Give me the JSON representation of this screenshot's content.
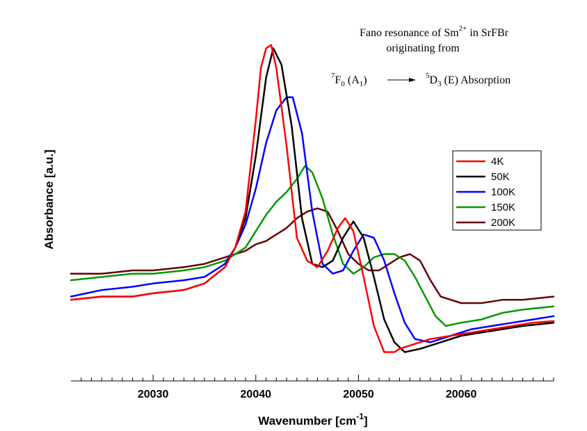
{
  "chart_data": {
    "type": "line",
    "title": "",
    "xlabel": "Wavenumber [cm",
    "xlabel_sup": "-1",
    "xlabel_end": "]",
    "ylabel": "Absorbance [a.u.]",
    "xlim": [
      20022,
      20069
    ],
    "ylim": [
      0,
      1
    ],
    "xticks": [
      20030,
      20040,
      20050,
      20060
    ],
    "xtick_labels": [
      "20030",
      "20040",
      "20050",
      "20060"
    ],
    "annotation": {
      "line1_a": "Fano resonance of Sm",
      "line1_sup": "2+",
      "line1_b": " in SrFBr",
      "line2": "originating from",
      "line3_pre_sup": "7",
      "line3_a": "F",
      "line3_sub1": "0",
      "line3_b": " (A",
      "line3_sub2": "1",
      "line3_c": ")",
      "line3_post_sup": "5",
      "line3_d": "D",
      "line3_sub3": "3",
      "line3_e": " (E)  Absorption"
    },
    "series": [
      {
        "name": "4K",
        "color": "#ff0000",
        "x": [
          20022,
          20025,
          20028,
          20030,
          20033,
          20035,
          20037,
          20038,
          20039,
          20040,
          20040.5,
          20041,
          20041.5,
          20042,
          20043,
          20044,
          20045,
          20046,
          20047,
          20048,
          20048.7,
          20049.5,
          20050.5,
          20051.5,
          20052.5,
          20053.5,
          20054,
          20055,
          20057,
          20059,
          20061,
          20063,
          20065,
          20067,
          20069
        ],
        "y": [
          0.21,
          0.22,
          0.22,
          0.23,
          0.24,
          0.26,
          0.31,
          0.37,
          0.48,
          0.76,
          0.92,
          0.98,
          0.99,
          0.92,
          0.68,
          0.4,
          0.33,
          0.31,
          0.36,
          0.43,
          0.46,
          0.42,
          0.28,
          0.13,
          0.05,
          0.05,
          0.06,
          0.07,
          0.09,
          0.1,
          0.11,
          0.12,
          0.13,
          0.14,
          0.145
        ]
      },
      {
        "name": "50K",
        "color": "#000000",
        "x": [
          20022,
          20025,
          20028,
          20030,
          20033,
          20035,
          20037,
          20038,
          20039,
          20040,
          20041,
          20041.7,
          20042.5,
          20043.5,
          20044.5,
          20045.5,
          20046.5,
          20047.5,
          20048.5,
          20049.5,
          20050.5,
          20051.5,
          20052.5,
          20053.5,
          20054.5,
          20056,
          20058,
          20060,
          20062,
          20064,
          20066,
          20069
        ],
        "y": [
          0.21,
          0.22,
          0.22,
          0.23,
          0.24,
          0.26,
          0.31,
          0.37,
          0.46,
          0.65,
          0.89,
          0.98,
          0.93,
          0.74,
          0.46,
          0.32,
          0.31,
          0.33,
          0.4,
          0.45,
          0.4,
          0.28,
          0.15,
          0.08,
          0.05,
          0.06,
          0.08,
          0.1,
          0.11,
          0.12,
          0.13,
          0.14
        ]
      },
      {
        "name": "100K",
        "color": "#0000ff",
        "x": [
          20022,
          20025,
          20028,
          20030,
          20033,
          20035,
          20037,
          20038,
          20039,
          20040,
          20041,
          20042,
          20043,
          20043.6,
          20044.5,
          20045.5,
          20046.5,
          20047.5,
          20048.5,
          20049.5,
          20050.5,
          20051.5,
          20052.5,
          20053.5,
          20054.5,
          20055.5,
          20057,
          20059,
          20061,
          20063,
          20065,
          20067,
          20069
        ],
        "y": [
          0.22,
          0.24,
          0.25,
          0.26,
          0.27,
          0.28,
          0.32,
          0.37,
          0.44,
          0.55,
          0.69,
          0.79,
          0.83,
          0.83,
          0.72,
          0.48,
          0.32,
          0.29,
          0.3,
          0.36,
          0.41,
          0.4,
          0.33,
          0.23,
          0.14,
          0.09,
          0.08,
          0.1,
          0.12,
          0.13,
          0.14,
          0.15,
          0.16
        ]
      },
      {
        "name": "150K",
        "color": "#009900",
        "x": [
          20022,
          20025,
          20028,
          20030,
          20033,
          20035,
          20037,
          20038,
          20039,
          20040,
          20041,
          20042,
          20043,
          20044,
          20044.8,
          20045.5,
          20046.5,
          20047.5,
          20048.5,
          20049.5,
          20050.5,
          20051.5,
          20052.5,
          20053.5,
          20054.5,
          20055.5,
          20056.5,
          20057.5,
          20058.5,
          20060,
          20062,
          20064,
          20066,
          20069
        ],
        "y": [
          0.27,
          0.28,
          0.29,
          0.29,
          0.3,
          0.31,
          0.33,
          0.35,
          0.37,
          0.42,
          0.47,
          0.51,
          0.54,
          0.58,
          0.62,
          0.6,
          0.52,
          0.41,
          0.32,
          0.29,
          0.31,
          0.34,
          0.35,
          0.35,
          0.33,
          0.28,
          0.22,
          0.16,
          0.13,
          0.14,
          0.15,
          0.17,
          0.18,
          0.19
        ]
      },
      {
        "name": "200K",
        "color": "#660000",
        "x": [
          20022,
          20025,
          20028,
          20030,
          20033,
          20035,
          20037,
          20038,
          20039,
          20040,
          20041,
          20042,
          20043,
          20044,
          20045,
          20046,
          20047,
          20048,
          20049,
          20050,
          20051,
          20052,
          20053,
          20054,
          20055,
          20056,
          20057,
          20058,
          20060,
          20062,
          20064,
          20066,
          20069
        ],
        "y": [
          0.29,
          0.29,
          0.3,
          0.3,
          0.31,
          0.32,
          0.34,
          0.35,
          0.36,
          0.38,
          0.39,
          0.41,
          0.43,
          0.46,
          0.48,
          0.49,
          0.48,
          0.42,
          0.35,
          0.32,
          0.3,
          0.3,
          0.32,
          0.34,
          0.35,
          0.33,
          0.27,
          0.22,
          0.2,
          0.2,
          0.21,
          0.21,
          0.22
        ]
      }
    ]
  }
}
